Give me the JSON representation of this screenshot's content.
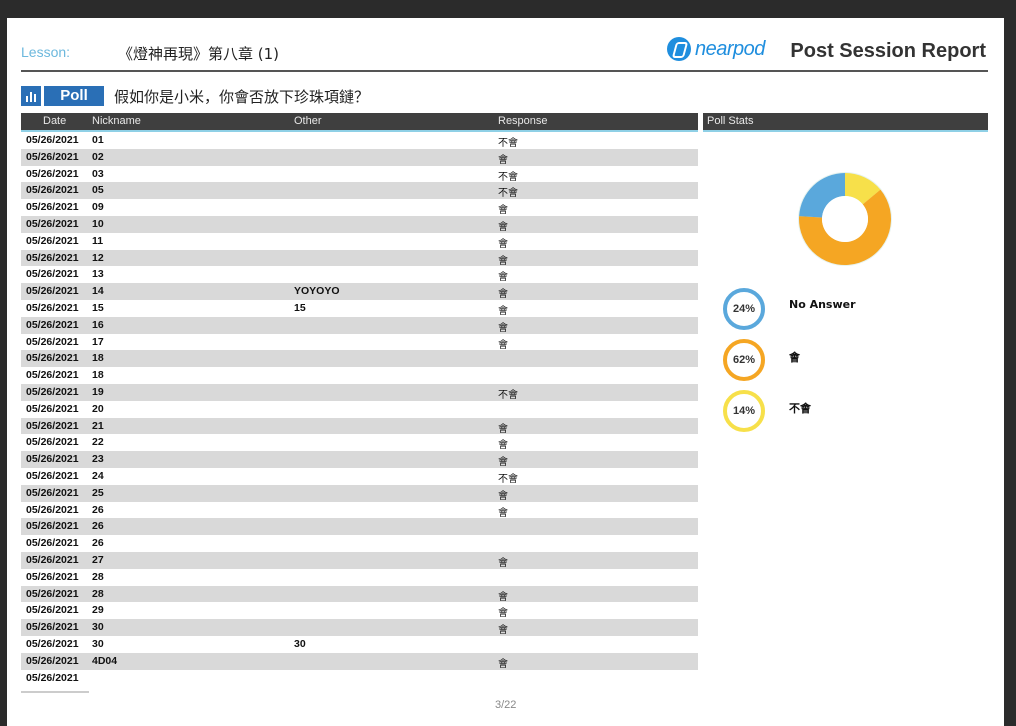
{
  "header": {
    "lesson_label": "Lesson:",
    "lesson_title": "《燈神再現》第八章 (1)",
    "logo_text": "nearpod",
    "report_title": "Post Session Report"
  },
  "poll": {
    "badge": "Poll",
    "question": "假如你是小米，你會否放下珍珠項鏈？"
  },
  "table": {
    "headers": {
      "date": "Date",
      "nickname": "Nickname",
      "other": "Other",
      "response": "Response"
    },
    "rows": [
      {
        "date": "05/26/2021",
        "nickname": "01",
        "other": "",
        "response": "不會"
      },
      {
        "date": "05/26/2021",
        "nickname": "02",
        "other": "",
        "response": "會"
      },
      {
        "date": "05/26/2021",
        "nickname": "03",
        "other": "",
        "response": "不會"
      },
      {
        "date": "05/26/2021",
        "nickname": "05",
        "other": "",
        "response": "不會"
      },
      {
        "date": "05/26/2021",
        "nickname": "09",
        "other": "",
        "response": "會"
      },
      {
        "date": "05/26/2021",
        "nickname": "10",
        "other": "",
        "response": "會"
      },
      {
        "date": "05/26/2021",
        "nickname": "11",
        "other": "",
        "response": "會"
      },
      {
        "date": "05/26/2021",
        "nickname": "12",
        "other": "",
        "response": "會"
      },
      {
        "date": "05/26/2021",
        "nickname": "13",
        "other": "",
        "response": "會"
      },
      {
        "date": "05/26/2021",
        "nickname": "14",
        "other": "YOYOYO",
        "response": "會"
      },
      {
        "date": "05/26/2021",
        "nickname": "15",
        "other": "15",
        "response": "會"
      },
      {
        "date": "05/26/2021",
        "nickname": "16",
        "other": "",
        "response": "會"
      },
      {
        "date": "05/26/2021",
        "nickname": "17",
        "other": "",
        "response": "會"
      },
      {
        "date": "05/26/2021",
        "nickname": "18",
        "other": "",
        "response": ""
      },
      {
        "date": "05/26/2021",
        "nickname": "18",
        "other": "",
        "response": ""
      },
      {
        "date": "05/26/2021",
        "nickname": "19",
        "other": "",
        "response": "不會"
      },
      {
        "date": "05/26/2021",
        "nickname": "20",
        "other": "",
        "response": ""
      },
      {
        "date": "05/26/2021",
        "nickname": "21",
        "other": "",
        "response": "會"
      },
      {
        "date": "05/26/2021",
        "nickname": "22",
        "other": "",
        "response": "會"
      },
      {
        "date": "05/26/2021",
        "nickname": "23",
        "other": "",
        "response": "會"
      },
      {
        "date": "05/26/2021",
        "nickname": "24",
        "other": "",
        "response": "不會"
      },
      {
        "date": "05/26/2021",
        "nickname": "25",
        "other": "",
        "response": "會"
      },
      {
        "date": "05/26/2021",
        "nickname": "26",
        "other": "",
        "response": "會"
      },
      {
        "date": "05/26/2021",
        "nickname": "26",
        "other": "",
        "response": ""
      },
      {
        "date": "05/26/2021",
        "nickname": "26",
        "other": "",
        "response": ""
      },
      {
        "date": "05/26/2021",
        "nickname": "27",
        "other": "",
        "response": "會"
      },
      {
        "date": "05/26/2021",
        "nickname": "28",
        "other": "",
        "response": ""
      },
      {
        "date": "05/26/2021",
        "nickname": "28",
        "other": "",
        "response": "會"
      },
      {
        "date": "05/26/2021",
        "nickname": "29",
        "other": "",
        "response": "會"
      },
      {
        "date": "05/26/2021",
        "nickname": "30",
        "other": "",
        "response": "會"
      },
      {
        "date": "05/26/2021",
        "nickname": "30",
        "other": "30",
        "response": ""
      },
      {
        "date": "05/26/2021",
        "nickname": "4D04",
        "other": "",
        "response": "會"
      },
      {
        "date": "05/26/2021",
        "nickname": "",
        "other": "",
        "response": ""
      }
    ]
  },
  "stats": {
    "title": "Poll Stats",
    "items": [
      {
        "percent_label": "24%",
        "label": "No Answer",
        "value": 24,
        "color": "#5aa8dc"
      },
      {
        "percent_label": "62%",
        "label": "會",
        "value": 62,
        "color": "#f5a623"
      },
      {
        "percent_label": "14%",
        "label": "不會",
        "value": 14,
        "color": "#f7e04a"
      }
    ]
  },
  "footer": {
    "page": "3/22"
  }
}
